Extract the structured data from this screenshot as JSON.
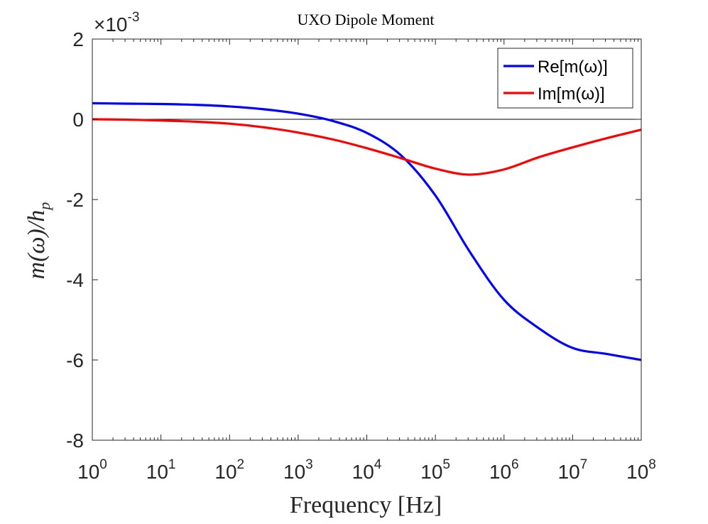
{
  "chart_data": {
    "type": "line",
    "title": "UXO Dipole Moment",
    "xlabel": "Frequency [Hz]",
    "ylabel_main": "m(ω)/h",
    "ylabel_sub": "p",
    "x_scale": "log",
    "xlim": [
      1,
      100000000
    ],
    "ylim": [
      -0.008,
      0.002
    ],
    "y_multiplier_base": "×10",
    "y_multiplier_exp": "-3",
    "x_ticks": [
      {
        "base": "10",
        "exp": "0",
        "value": 1
      },
      {
        "base": "10",
        "exp": "1",
        "value": 10
      },
      {
        "base": "10",
        "exp": "2",
        "value": 100
      },
      {
        "base": "10",
        "exp": "3",
        "value": 1000
      },
      {
        "base": "10",
        "exp": "4",
        "value": 10000
      },
      {
        "base": "10",
        "exp": "5",
        "value": 100000
      },
      {
        "base": "10",
        "exp": "6",
        "value": 1000000
      },
      {
        "base": "10",
        "exp": "7",
        "value": 10000000
      },
      {
        "base": "10",
        "exp": "8",
        "value": 100000000
      }
    ],
    "y_ticks": [
      {
        "label": "2",
        "value": 0.002
      },
      {
        "label": "0",
        "value": 0
      },
      {
        "label": "-2",
        "value": -0.002
      },
      {
        "label": "-4",
        "value": -0.004
      },
      {
        "label": "-6",
        "value": -0.006
      },
      {
        "label": "-8",
        "value": -0.008
      }
    ],
    "zero_line": true,
    "grid": false,
    "legend_position": "top-right",
    "series": [
      {
        "name": "Re[m(ω)]",
        "color": "#0000ff",
        "x": [
          1,
          3.16,
          10,
          31.6,
          100,
          316,
          1000,
          3160,
          10000,
          31600,
          100000,
          316000,
          1000000,
          3160000,
          10000000,
          31600000,
          100000000
        ],
        "y": [
          0.0004,
          0.00039,
          0.00038,
          0.00036,
          0.00032,
          0.00025,
          0.00014,
          -4e-05,
          -0.00034,
          -0.0009,
          -0.0019,
          -0.0033,
          -0.0045,
          -0.0052,
          -0.0057,
          -0.00585,
          -0.006
        ]
      },
      {
        "name": "Im[m(ω)]",
        "color": "#ff0000",
        "x": [
          1,
          3.16,
          10,
          31.6,
          100,
          316,
          1000,
          3160,
          10000,
          31600,
          100000,
          316000,
          1000000,
          3160000,
          10000000,
          31600000,
          100000000
        ],
        "y": [
          0,
          -1e-05,
          -3e-05,
          -6e-05,
          -0.00011,
          -0.0002,
          -0.00033,
          -0.0005,
          -0.00072,
          -0.00097,
          -0.00123,
          -0.00138,
          -0.00125,
          -0.00095,
          -0.0007,
          -0.00047,
          -0.00026
        ]
      }
    ]
  }
}
